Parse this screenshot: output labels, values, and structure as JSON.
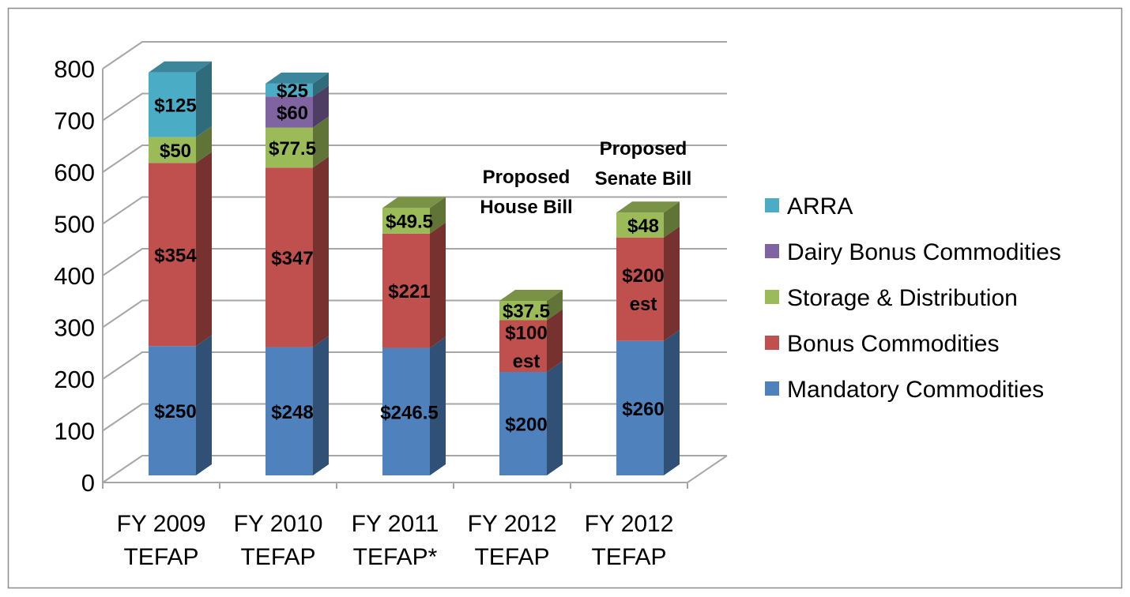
{
  "chart_data": {
    "type": "bar",
    "stacked": true,
    "three_d": true,
    "categories": [
      [
        "FY 2009",
        "TEFAP"
      ],
      [
        "FY 2010",
        "TEFAP"
      ],
      [
        "FY 2011",
        "TEFAP*"
      ],
      [
        "FY 2012",
        "TEFAP"
      ],
      [
        "FY 2012",
        "TEFAP"
      ]
    ],
    "series": [
      {
        "name": "Mandatory Commodities",
        "color": "#4F81BD",
        "values": [
          250,
          248,
          246.5,
          200,
          260
        ],
        "labels": [
          [
            "$250"
          ],
          [
            "$248"
          ],
          [
            "$246.5"
          ],
          [
            "$200"
          ],
          [
            "$260"
          ]
        ]
      },
      {
        "name": "Bonus Commodities",
        "color": "#C0504D",
        "values": [
          354,
          347,
          221,
          100,
          200
        ],
        "labels": [
          [
            "$354"
          ],
          [
            "$347"
          ],
          [
            "$221"
          ],
          [
            "$100",
            "est"
          ],
          [
            "$200",
            "est"
          ]
        ]
      },
      {
        "name": "Storage & Distribution",
        "color": "#9BBB59",
        "values": [
          50,
          77.5,
          49.5,
          37.5,
          48
        ],
        "labels": [
          [
            "$50"
          ],
          [
            "$77.5"
          ],
          [
            "$49.5"
          ],
          [
            "$37.5"
          ],
          [
            "$48"
          ]
        ]
      },
      {
        "name": "Dairy Bonus  Commodities",
        "color": "#8064A2",
        "values": [
          0,
          60,
          0,
          0,
          0
        ],
        "labels": [
          [],
          [
            "$60"
          ],
          [],
          [],
          []
        ]
      },
      {
        "name": "ARRA",
        "color": "#4BACC6",
        "values": [
          125,
          25,
          0,
          0,
          0
        ],
        "labels": [
          [
            "$125"
          ],
          [
            "$25"
          ],
          [],
          [],
          []
        ]
      }
    ],
    "annotations": [
      {
        "category_index": 3,
        "lines": [
          "Proposed",
          "House Bill"
        ]
      },
      {
        "category_index": 4,
        "lines": [
          "Proposed",
          "Senate Bill"
        ]
      }
    ],
    "yticks": [
      "0",
      "100",
      "200",
      "300",
      "400",
      "500",
      "600",
      "700",
      "800"
    ],
    "ylim": [
      0,
      800
    ],
    "grid": true,
    "legend_position": "right",
    "title": "",
    "xlabel": "",
    "ylabel": ""
  }
}
